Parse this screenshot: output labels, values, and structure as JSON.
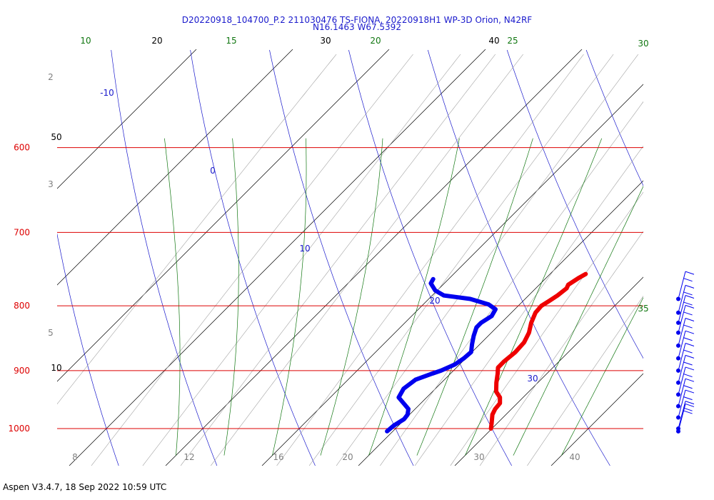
{
  "chart_data": {
    "type": "skew-t log-p sounding",
    "title_line1": "D20220918_104700_P.2 211030476 TS-FIONA, 20220918H1 WP-3D Orion, N42RF",
    "title_line2": "N16.1463 W67.5392",
    "footer": "Aspen V3.4.7, 18 Sep 2022  10:59 UTC",
    "pressure_range_hpa": [
      1030,
      600
    ],
    "temperature_range_c": [
      8,
      45
    ],
    "isobars": [
      {
        "p": 600,
        "label": "600"
      },
      {
        "p": 700,
        "label": "700"
      },
      {
        "p": 800,
        "label": "800"
      },
      {
        "p": 900,
        "label": "900"
      },
      {
        "p": 1000,
        "label": "1000"
      }
    ],
    "bottom_tick_labels": [
      "8",
      "12",
      "16",
      "20",
      "30",
      "40"
    ],
    "isotherm_labels": [
      {
        "t": 20,
        "label": "20"
      },
      {
        "t": 30,
        "label": "30"
      },
      {
        "t": 40,
        "label": "40"
      },
      {
        "t": 50,
        "label": "50"
      },
      {
        "t": 10,
        "label": "10"
      }
    ],
    "dry_adiabat_labels": [
      "-10",
      "0",
      "10",
      "20",
      "30"
    ],
    "moist_adiabat_labels": [
      "10",
      "15",
      "20",
      "25",
      "30",
      "35"
    ],
    "mixing_ratio_labels": [
      "2",
      "3",
      "5"
    ],
    "temperature_profile": [
      {
        "p": 1000,
        "t": 29.9
      },
      {
        "p": 990,
        "t": 29.4
      },
      {
        "p": 975,
        "t": 28.6
      },
      {
        "p": 965,
        "t": 28.3
      },
      {
        "p": 955,
        "t": 28.2
      },
      {
        "p": 945,
        "t": 27.6
      },
      {
        "p": 935,
        "t": 26.6
      },
      {
        "p": 920,
        "t": 25.7
      },
      {
        "p": 905,
        "t": 24.9
      },
      {
        "p": 895,
        "t": 24.3
      },
      {
        "p": 885,
        "t": 24.3
      },
      {
        "p": 870,
        "t": 24.5
      },
      {
        "p": 855,
        "t": 24.4
      },
      {
        "p": 840,
        "t": 23.9
      },
      {
        "p": 825,
        "t": 23.1
      },
      {
        "p": 810,
        "t": 22.5
      },
      {
        "p": 800,
        "t": 22.4
      },
      {
        "p": 793,
        "t": 22.7
      },
      {
        "p": 785,
        "t": 23.0
      },
      {
        "p": 775,
        "t": 23.2
      },
      {
        "p": 770,
        "t": 23.0
      },
      {
        "p": 760,
        "t": 23.4
      },
      {
        "p": 755,
        "t": 23.7
      }
    ],
    "dewpoint_profile": [
      {
        "p": 1005,
        "t": 19.4
      },
      {
        "p": 995,
        "t": 19.5
      },
      {
        "p": 983,
        "t": 19.9
      },
      {
        "p": 975,
        "t": 19.8
      },
      {
        "p": 965,
        "t": 19.3
      },
      {
        "p": 955,
        "t": 18.2
      },
      {
        "p": 945,
        "t": 17.1
      },
      {
        "p": 930,
        "t": 16.7
      },
      {
        "p": 915,
        "t": 17.0
      },
      {
        "p": 905,
        "t": 18.1
      },
      {
        "p": 900,
        "t": 18.7
      },
      {
        "p": 890,
        "t": 19.5
      },
      {
        "p": 880,
        "t": 19.8
      },
      {
        "p": 870,
        "t": 19.9
      },
      {
        "p": 858,
        "t": 19.2
      },
      {
        "p": 845,
        "t": 18.5
      },
      {
        "p": 832,
        "t": 17.9
      },
      {
        "p": 825,
        "t": 17.9
      },
      {
        "p": 815,
        "t": 18.3
      },
      {
        "p": 805,
        "t": 18.0
      },
      {
        "p": 798,
        "t": 16.8
      },
      {
        "p": 790,
        "t": 14.3
      },
      {
        "p": 785,
        "t": 11.2
      },
      {
        "p": 778,
        "t": 9.8
      },
      {
        "p": 768,
        "t": 8.6
      },
      {
        "p": 762,
        "t": 8.4
      }
    ],
    "wind_barb_pressures_hpa": [
      1005,
      1000,
      980,
      960,
      940,
      920,
      900,
      880,
      860,
      840,
      825,
      810,
      790
    ]
  }
}
